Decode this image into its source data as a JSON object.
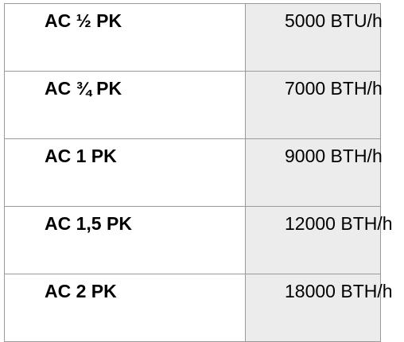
{
  "table": {
    "rows": [
      {
        "label": "AC ½ PK",
        "value": "5000 BTU/h"
      },
      {
        "label": "AC ¾ PK",
        "value": "7000 BTH/h"
      },
      {
        "label": "AC 1 PK",
        "value": "9000 BTH/h"
      },
      {
        "label": "AC 1,5 PK",
        "value": "12000 BTH/h"
      },
      {
        "label": "AC 2 PK",
        "value": "18000 BTH/h"
      }
    ]
  },
  "colors": {
    "value_cell_bg": "#ececec",
    "border": "#9a9a9a"
  }
}
